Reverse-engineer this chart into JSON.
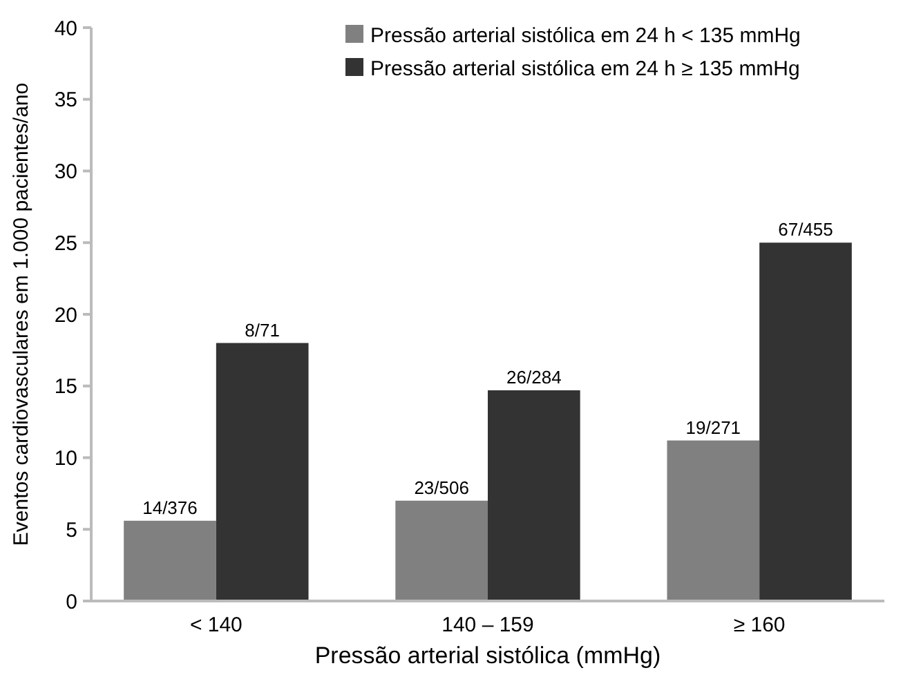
{
  "chart_data": {
    "type": "bar",
    "xlabel": "Pressão arterial sistólica (mmHg)",
    "ylabel": "Eventos cardiovasculares em 1.000 pacientes/ano",
    "categories": [
      "< 140",
      "140 – 159",
      "≥ 160"
    ],
    "series": [
      {
        "name": "Pressão arterial sistólica em 24 h < 135 mmHg",
        "color": "#808080",
        "values": [
          5.6,
          7.0,
          11.2
        ],
        "value_labels": [
          "14/376",
          "23/506",
          "19/271"
        ]
      },
      {
        "name": "Pressão arterial sistólica em 24 h ≥ 135 mmHg",
        "color": "#333333",
        "values": [
          18.0,
          14.7,
          25.0
        ],
        "value_labels": [
          "8/71",
          "26/284",
          "67/455"
        ]
      }
    ],
    "ylim": [
      0,
      40
    ],
    "yticks": [
      0,
      5,
      10,
      15,
      20,
      25,
      30,
      35,
      40
    ],
    "legend": "top right"
  }
}
